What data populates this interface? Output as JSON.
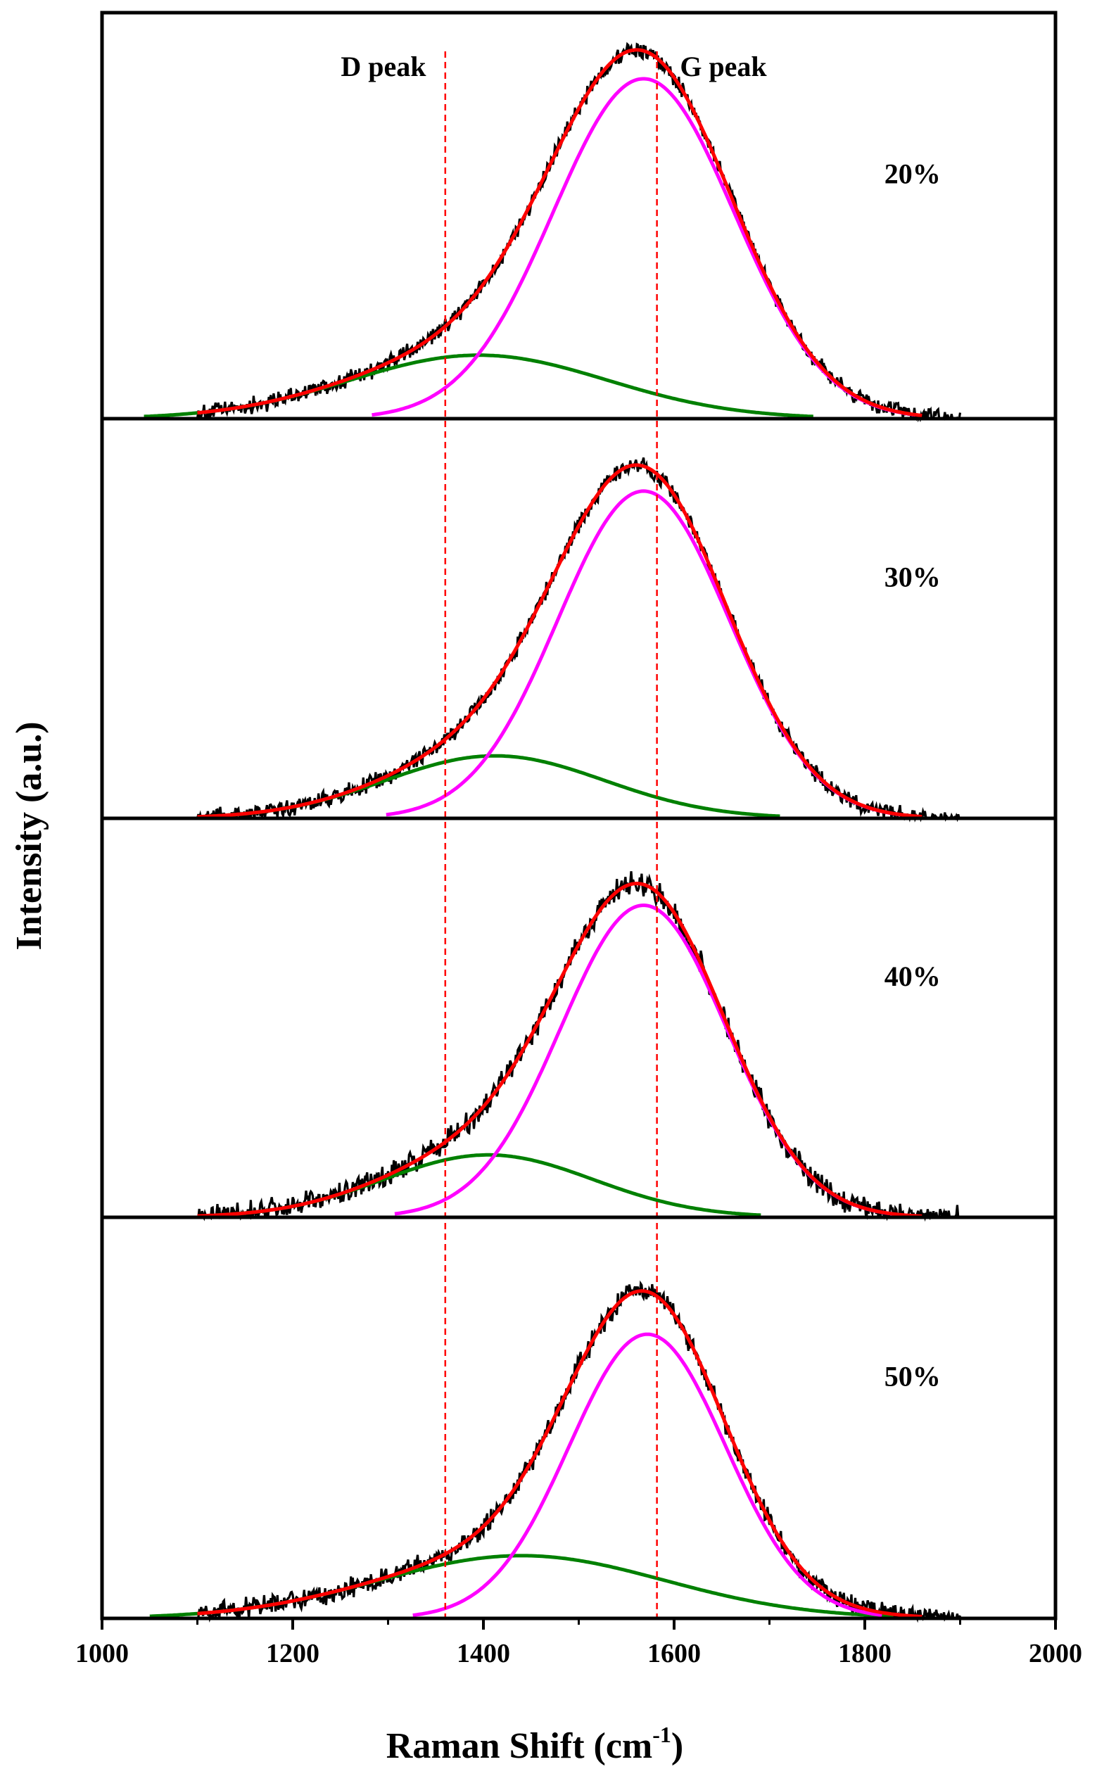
{
  "chart_data": {
    "type": "line",
    "title": "",
    "xlabel": "Raman Shift (cm",
    "xlabel_sup": "-1",
    "xlabel_close": ")",
    "ylabel": "Intensity (a.u.)",
    "xlim": [
      1000,
      2000
    ],
    "xticks": [
      1000,
      1200,
      1400,
      1600,
      1800,
      2000
    ],
    "xtick_labels": [
      "1000",
      "1200",
      "1400",
      "1600",
      "1800",
      "2000"
    ],
    "reference_lines": [
      {
        "label": "D peak",
        "x": 1360,
        "color": "#ff0000",
        "style": "dashed"
      },
      {
        "label": "G peak",
        "x": 1582,
        "color": "#ff0000",
        "style": "dashed"
      }
    ],
    "series_colors": {
      "raw": "#000000",
      "fit": "#ff0000",
      "G_component": "#ff00ff",
      "D_component": "#008000"
    },
    "panels": [
      {
        "label": "20%",
        "range": [
          1100,
          1900
        ],
        "ymax": 1.0,
        "G_component": {
          "center": 1568,
          "height": 0.91,
          "sigma": 95
        },
        "D_component": {
          "center": 1395,
          "height": 0.17,
          "sigma": 135
        },
        "noise": 0.018
      },
      {
        "label": "30%",
        "range": [
          1100,
          1900
        ],
        "ymax": 1.0,
        "G_component": {
          "center": 1568,
          "height": 0.89,
          "sigma": 90
        },
        "D_component": {
          "center": 1412,
          "height": 0.17,
          "sigma": 115
        },
        "noise": 0.018
      },
      {
        "label": "40%",
        "range": [
          1100,
          1900
        ],
        "ymax": 1.0,
        "G_component": {
          "center": 1568,
          "height": 0.85,
          "sigma": 87
        },
        "D_component": {
          "center": 1405,
          "height": 0.17,
          "sigma": 110
        },
        "noise": 0.025
      },
      {
        "label": "50%",
        "range": [
          1100,
          1900
        ],
        "ymax": 1.0,
        "G_component": {
          "center": 1572,
          "height": 0.77,
          "sigma": 82
        },
        "D_component": {
          "center": 1440,
          "height": 0.17,
          "sigma": 150
        },
        "noise": 0.022
      }
    ]
  }
}
